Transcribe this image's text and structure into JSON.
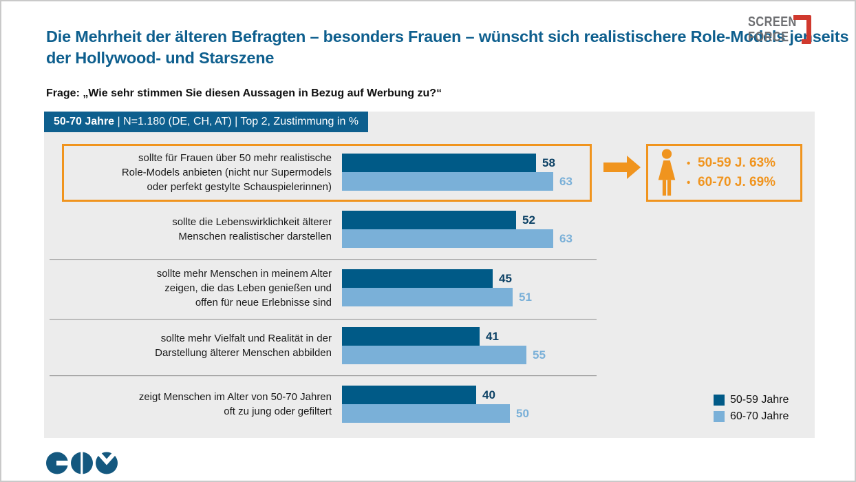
{
  "page": {
    "title_lines": [
      "Die Mehrheit der älteren Befragten – besonders Frauen – wünscht",
      "sich realistischere Role-Models jenseits der Hollywood- und Starszene"
    ],
    "question": "Frage: „Wie sehr stimmen Sie diesen Aussagen in Bezug auf Werbung zu?“"
  },
  "screenforce_logo": {
    "line1": "SCREEN",
    "line2": "FORCE"
  },
  "banner": {
    "bold": "50-70 Jahre",
    "rest": " | N=1.180 (DE, CH, AT) | Top 2, Zustimmung in %"
  },
  "chart_data": {
    "type": "bar",
    "orientation": "horizontal",
    "title": "50-70 Jahre | N=1.180 (DE, CH, AT) | Top 2, Zustimmung in %",
    "unit": "Top 2, Zustimmung in %",
    "xlim": [
      0,
      100
    ],
    "categories": [
      "sollte für Frauen über 50 mehr realistische Role-Models anbieten (nicht nur Supermodels oder perfekt gestylte Schauspielerinnen)",
      "sollte die Lebenswirklichkeit älterer Menschen realistischer darstellen",
      "sollte mehr Menschen in meinem Alter zeigen, die das Leben genießen und offen für neue Erlebnisse sind",
      "sollte mehr Vielfalt und Realität in der Darstellung älterer Menschen abbilden",
      "zeigt Menschen im Alter von 50-70 Jahren oft zu jung oder gefiltert"
    ],
    "categories_lines": [
      [
        "sollte für Frauen über 50 mehr realistische",
        "Role-Models anbieten (nicht nur Supermodels",
        "oder perfekt gestylte Schauspielerinnen)"
      ],
      [
        "sollte die Lebenswirklichkeit älterer",
        "Menschen realistischer darstellen"
      ],
      [
        "sollte mehr Menschen in meinem Alter",
        "zeigen, die das Leben genießen und",
        "offen für neue Erlebnisse sind"
      ],
      [
        "sollte mehr Vielfalt und Realität in der",
        "Darstellung älterer Menschen abbilden"
      ],
      [
        "zeigt Menschen im Alter von 50-70 Jahren",
        "oft zu jung oder gefiltert"
      ]
    ],
    "series": [
      {
        "name": "50-59 Jahre",
        "color": "#005a87",
        "values": [
          58,
          52,
          45,
          41,
          40
        ]
      },
      {
        "name": "60-70 Jahre",
        "color": "#7ab0d8",
        "values": [
          63,
          63,
          51,
          55,
          50
        ]
      }
    ],
    "highlighted_row": 0,
    "legend_position": "bottom-right",
    "grid": false
  },
  "callout": {
    "icon": "woman-icon",
    "bullet": "•",
    "lines": [
      "50-59 J. 63%",
      "60-70 J. 69%"
    ]
  },
  "colors": {
    "bar_dark": "#005a87",
    "bar_light": "#7ab0d8",
    "title_blue": "#0e5f8e",
    "accent_orange": "#f0941e",
    "panel_grey": "#ececec",
    "logo_grey": "#6e6f72",
    "logo_red": "#d0392e",
    "footer_blue": "#14587f"
  }
}
